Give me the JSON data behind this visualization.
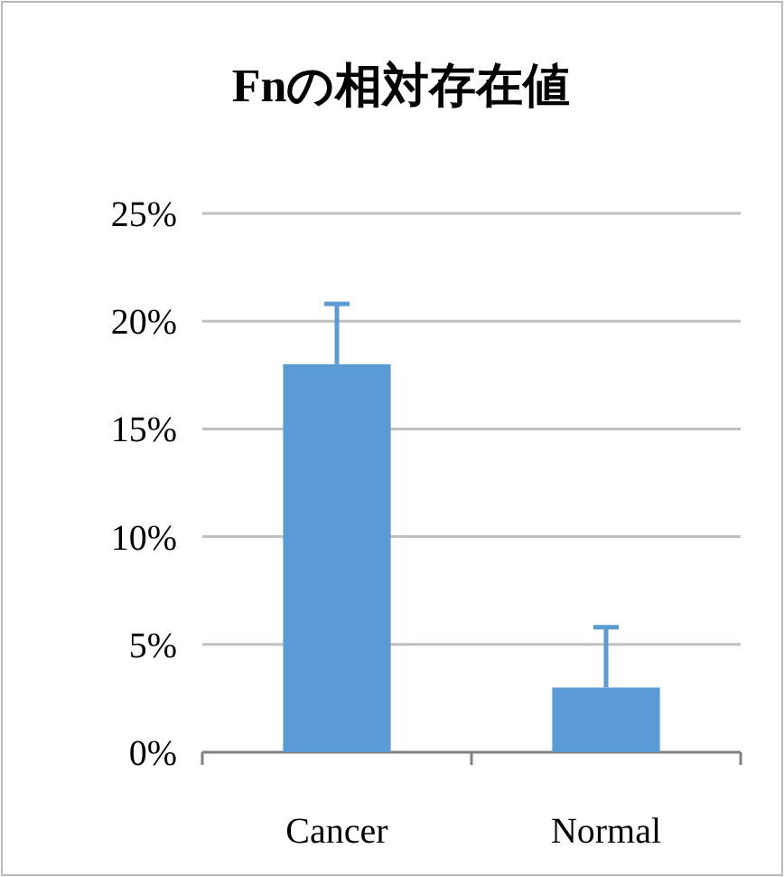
{
  "chart_data": {
    "type": "bar",
    "title": "Fnの相対存在値",
    "categories": [
      "Cancer",
      "Normal"
    ],
    "values": [
      18,
      3
    ],
    "errors": [
      [
        18,
        20.8
      ],
      [
        3,
        5.8
      ]
    ],
    "color": "#5b9bd5",
    "ylim": [
      0,
      25
    ],
    "yticks": [
      {
        "value": 0,
        "label": "0%"
      },
      {
        "value": 5,
        "label": "5%"
      },
      {
        "value": 10,
        "label": "10%"
      },
      {
        "value": 15,
        "label": "15%"
      },
      {
        "value": 20,
        "label": "20%"
      },
      {
        "value": 25,
        "label": "25%"
      }
    ],
    "grid": "y"
  }
}
